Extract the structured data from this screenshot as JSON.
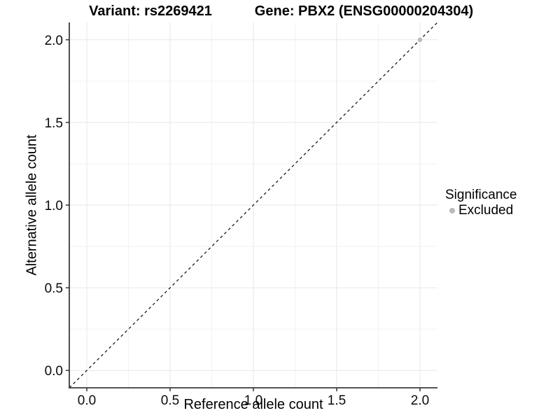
{
  "chart_data": {
    "type": "scatter",
    "titles": {
      "variant": "Variant: rs2269421",
      "gene": "Gene: PBX2 (ENSG00000204304)"
    },
    "xlabel": "Reference allele count",
    "ylabel": "Alternative allele count",
    "xlim": [
      -0.105,
      2.105
    ],
    "ylim": [
      -0.105,
      2.105
    ],
    "xticks": [
      0.0,
      0.5,
      1.0,
      1.5,
      2.0
    ],
    "yticks": [
      0.0,
      0.5,
      1.0,
      1.5,
      2.0
    ],
    "x_minor": [
      0.25,
      0.75,
      1.25,
      1.75
    ],
    "y_minor": [
      0.25,
      0.75,
      1.25,
      1.75
    ],
    "grid": "major+minor",
    "legend_position": "right",
    "reference_line": {
      "type": "identity",
      "equation": "y = x",
      "style": "dashed"
    },
    "series": [
      {
        "name": "Excluded",
        "color": "#b9b9b9",
        "points": [
          {
            "x": 2.0,
            "y": 2.0
          }
        ]
      }
    ],
    "legend": {
      "title": "Significance",
      "items": [
        {
          "label": "Excluded",
          "color": "#b9b9b9"
        }
      ]
    },
    "colors": {
      "background": "#ffffff",
      "major_grid": "#e7e7e7",
      "minor_grid": "#f2f2f2",
      "axis_line": "#3c3c3c",
      "tick": "#333333",
      "tick_label": "#0a0a0a",
      "dashed_line": "#1a1a1a"
    }
  }
}
